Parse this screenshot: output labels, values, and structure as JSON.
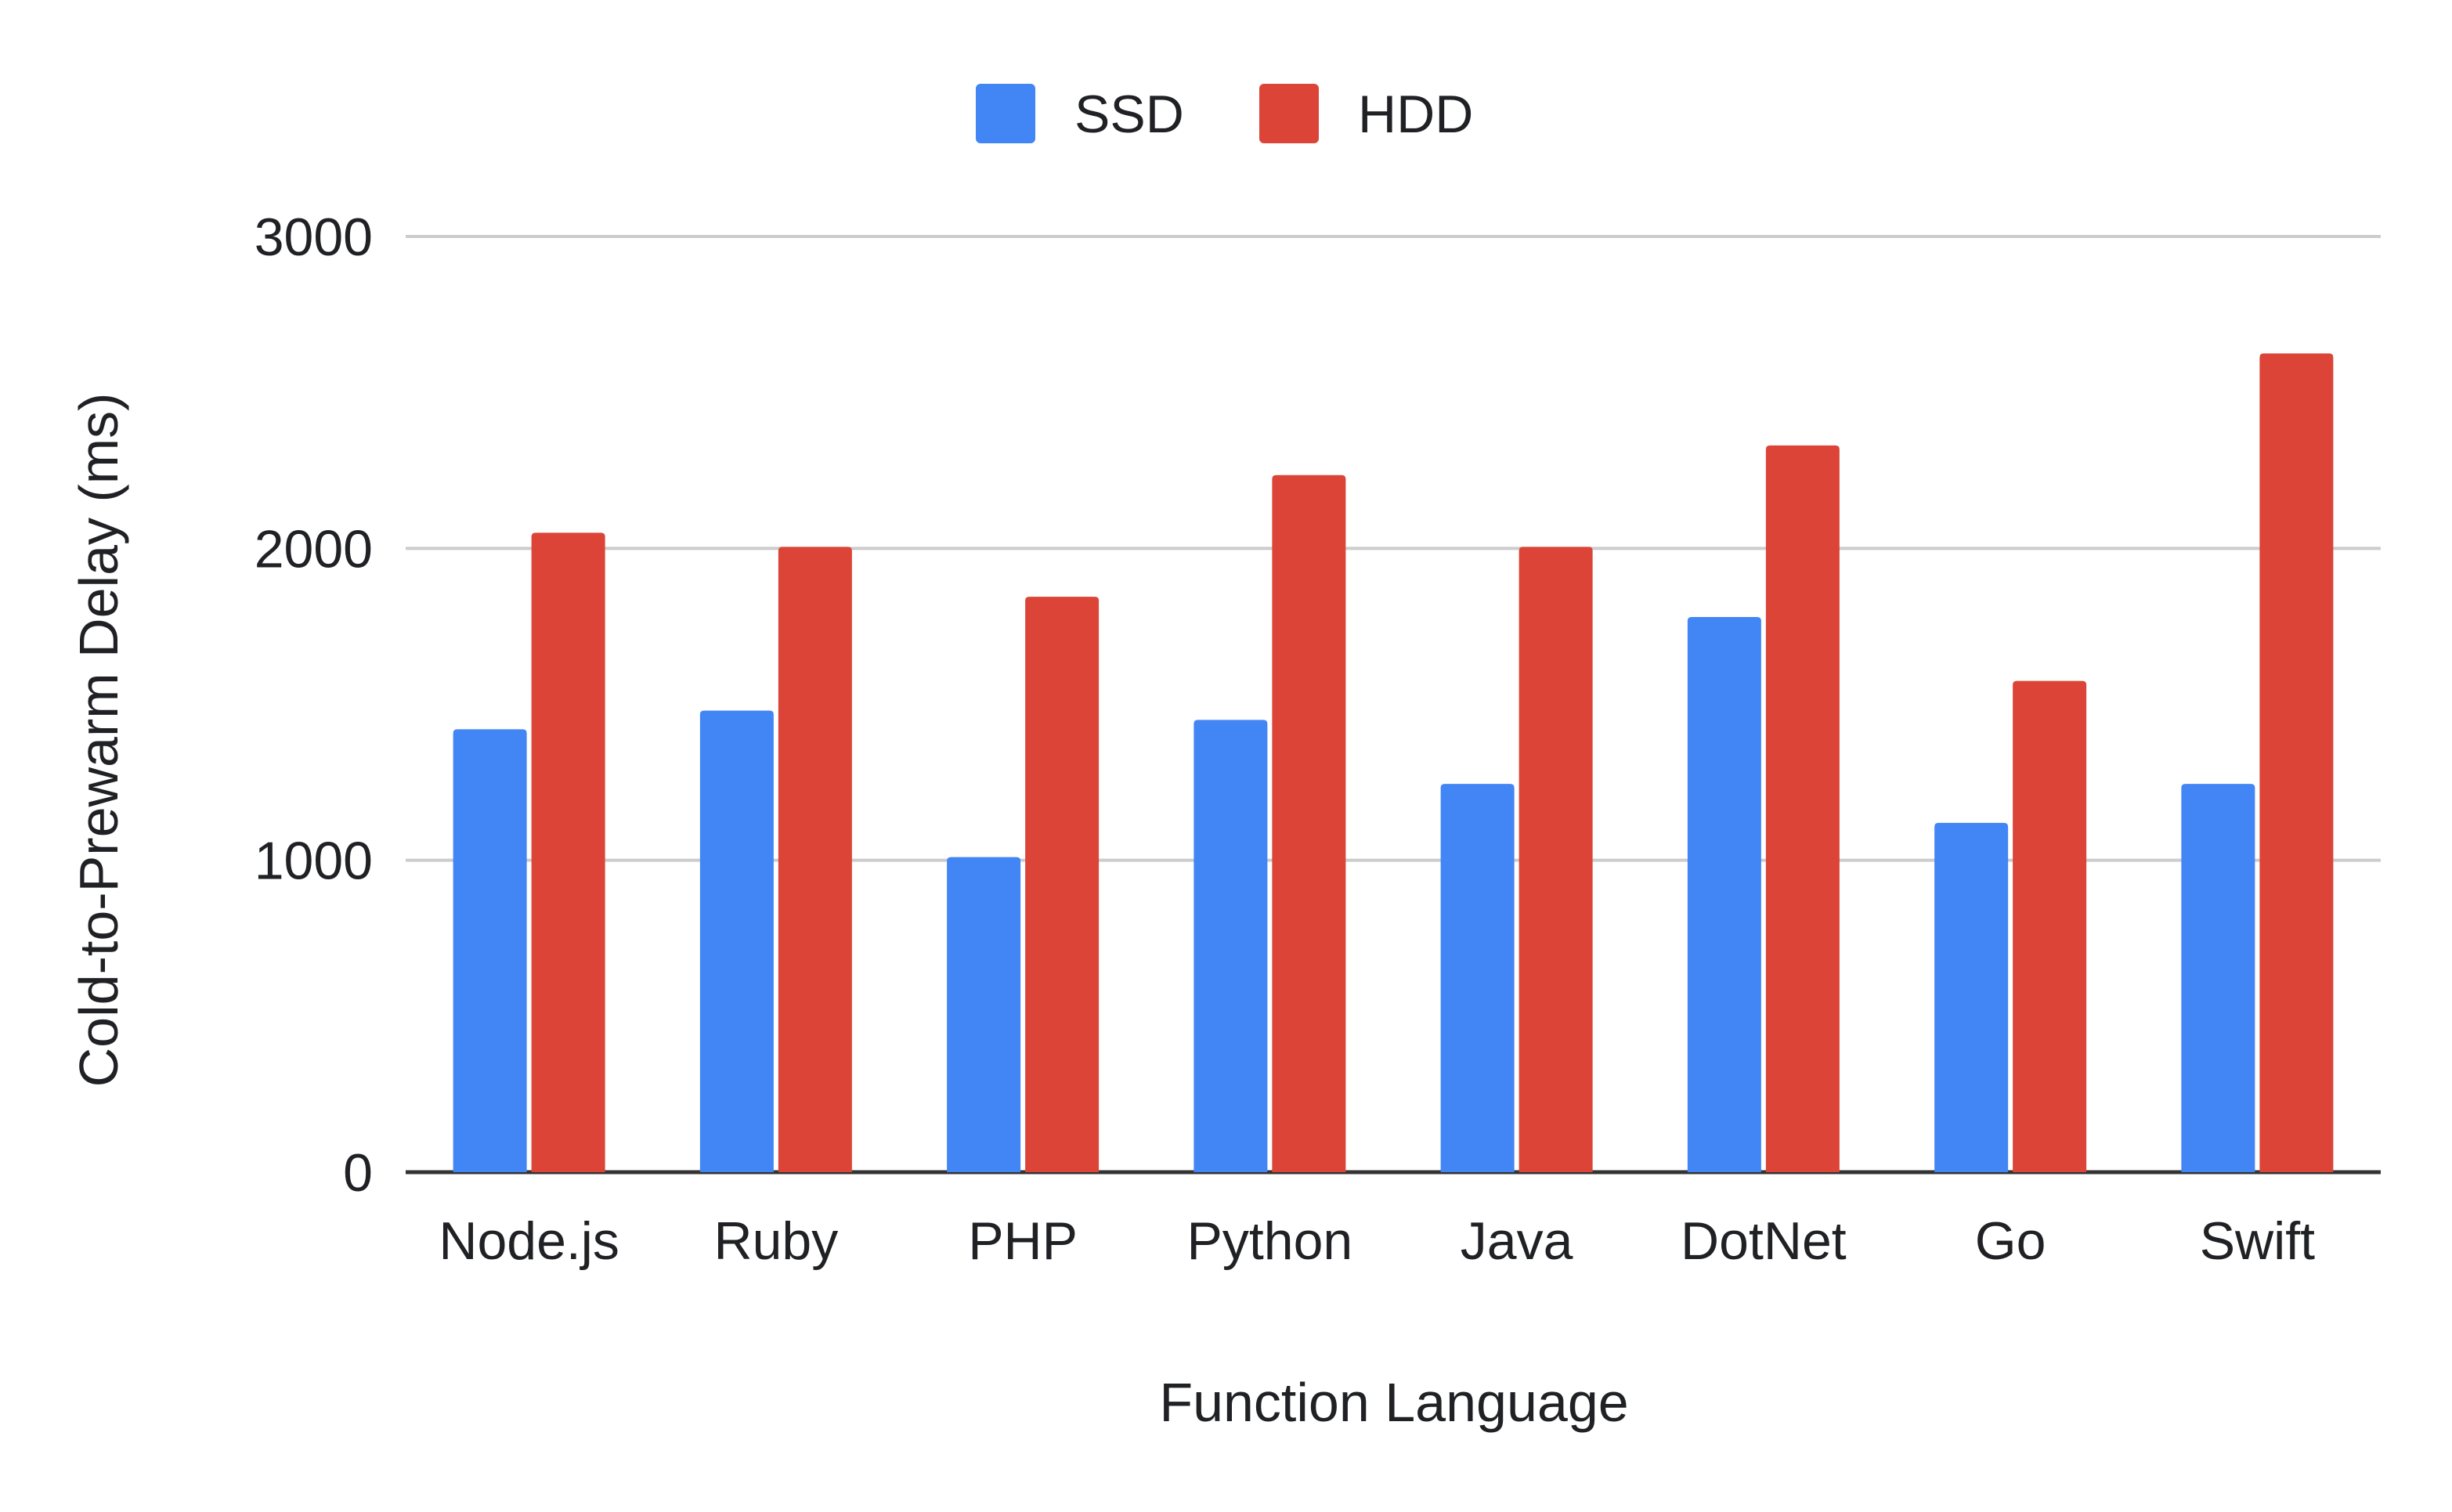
{
  "chart_data": {
    "type": "bar",
    "title": "",
    "xlabel": "Function Language",
    "ylabel": "Cold-to-Prewarm Delay (ms)",
    "ylim": [
      0,
      3000
    ],
    "yticks": [
      0,
      1000,
      2000,
      3000
    ],
    "grid": true,
    "legend_position": "top-center",
    "categories": [
      "Node.js",
      "Ruby",
      "PHP",
      "Python",
      "Java",
      "DotNet",
      "Go",
      "Swift"
    ],
    "series": [
      {
        "name": "SSD",
        "color": "#4285f4",
        "values": [
          1420,
          1480,
          1010,
          1450,
          1245,
          1780,
          1120,
          1245
        ]
      },
      {
        "name": "HDD",
        "color": "#db4437",
        "values": [
          2050,
          2005,
          1845,
          2235,
          2005,
          2330,
          1575,
          2625
        ]
      }
    ]
  }
}
